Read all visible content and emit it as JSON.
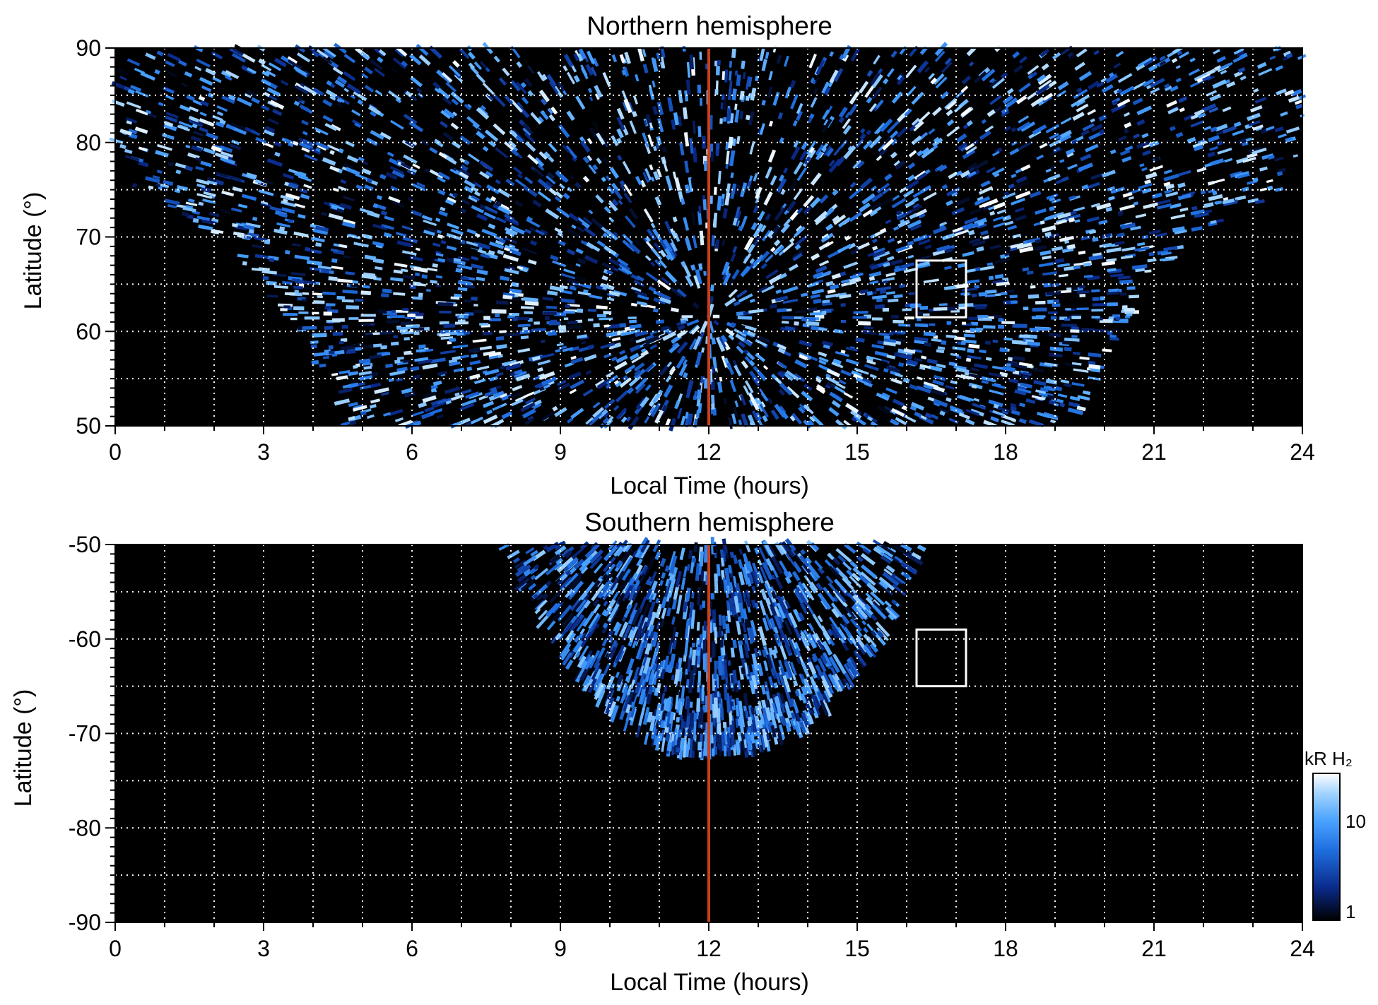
{
  "figure": {
    "colorbar_label": "kR H₂",
    "colorbar_ticks": [
      "10",
      "1"
    ]
  },
  "chart_data": [
    {
      "type": "heatmap",
      "title": "Northern hemisphere",
      "xlabel": "Local Time (hours)",
      "ylabel": "Latitude (°)",
      "xlim": [
        0,
        24
      ],
      "ylim": [
        50,
        90
      ],
      "xticks": [
        0,
        3,
        6,
        9,
        12,
        15,
        18,
        21,
        24
      ],
      "xtick_labels": [
        "0",
        "3",
        "6",
        "9",
        "12",
        "15",
        "18",
        "21",
        "24"
      ],
      "yticks": [
        90,
        80,
        70,
        60,
        50
      ],
      "ytick_labels": [
        "90",
        "80",
        "70",
        "60",
        "50"
      ],
      "grid": true,
      "gridlines_x": [
        1,
        2,
        3,
        4,
        5,
        6,
        7,
        8,
        9,
        10,
        11,
        12,
        13,
        14,
        15,
        16,
        17,
        18,
        19,
        20,
        21,
        22,
        23
      ],
      "gridlines_y": [
        55,
        60,
        65,
        70,
        75,
        80,
        85
      ],
      "colorscale": "log",
      "colorscale_range_kR": [
        1,
        30
      ],
      "colormap": [
        "#000000",
        "#0a2a8a",
        "#1f6fe0",
        "#4aa3ff",
        "#9fd2ff",
        "#ffffff"
      ],
      "reference_line": {
        "x": 12,
        "color": "#c8401b"
      },
      "highlight_box": {
        "x": [
          16.2,
          17.2
        ],
        "y": [
          61.5,
          67.5
        ],
        "color": "#ffffff"
      },
      "coverage": {
        "description_lt_edges_by_latitude": [
          {
            "lat": 50,
            "lt_min": 4.7,
            "lt_max": 19.4
          },
          {
            "lat": 55,
            "lt_min": 4.2,
            "lt_max": 19.8
          },
          {
            "lat": 60,
            "lt_min": 3.7,
            "lt_max": 20.3
          },
          {
            "lat": 65,
            "lt_min": 3.0,
            "lt_max": 21.0
          },
          {
            "lat": 70,
            "lt_min": 2.1,
            "lt_max": 22.0
          },
          {
            "lat": 75,
            "lt_min": 0.4,
            "lt_max": 23.6
          },
          {
            "lat": 80,
            "lt_min": 0,
            "lt_max": 24
          },
          {
            "lat": 90,
            "lt_min": 0,
            "lt_max": 24
          }
        ]
      }
    },
    {
      "type": "heatmap",
      "title": "Southern hemisphere",
      "xlabel": "Local Time (hours)",
      "ylabel": "Latitude (°)",
      "xlim": [
        0,
        24
      ],
      "ylim": [
        -90,
        -50
      ],
      "xticks": [
        0,
        3,
        6,
        9,
        12,
        15,
        18,
        21,
        24
      ],
      "xtick_labels": [
        "0",
        "3",
        "6",
        "9",
        "12",
        "15",
        "18",
        "21",
        "24"
      ],
      "yticks": [
        -50,
        -60,
        -70,
        -80,
        -90
      ],
      "ytick_labels": [
        "-50",
        "-60",
        "-70",
        "-80",
        "-90"
      ],
      "grid": true,
      "gridlines_x": [
        1,
        2,
        3,
        4,
        5,
        6,
        7,
        8,
        9,
        10,
        11,
        12,
        13,
        14,
        15,
        16,
        17,
        18,
        19,
        20,
        21,
        22,
        23
      ],
      "gridlines_y": [
        -55,
        -60,
        -65,
        -70,
        -75,
        -80,
        -85
      ],
      "colorscale": "log",
      "colorscale_range_kR": [
        1,
        30
      ],
      "colormap": [
        "#000000",
        "#0a2a8a",
        "#1f6fe0",
        "#4aa3ff",
        "#9fd2ff",
        "#ffffff"
      ],
      "reference_line": {
        "x": 12,
        "color": "#c8401b"
      },
      "highlight_box": {
        "x": [
          16.2,
          17.2
        ],
        "y": [
          -65,
          -59
        ],
        "color": "#ffffff"
      },
      "coverage": {
        "description_lt_edges_by_latitude": [
          {
            "lat": -50,
            "lt_min": 7.7,
            "lt_max": 16.4
          },
          {
            "lat": -55,
            "lt_min": 8.3,
            "lt_max": 16.0
          },
          {
            "lat": -60,
            "lt_min": 8.8,
            "lt_max": 15.5
          },
          {
            "lat": -65,
            "lt_min": 9.5,
            "lt_max": 14.8
          },
          {
            "lat": -70,
            "lt_min": 10.5,
            "lt_max": 13.9
          },
          {
            "lat": -72,
            "lt_min": 11.4,
            "lt_max": 12.8
          }
        ]
      }
    }
  ]
}
